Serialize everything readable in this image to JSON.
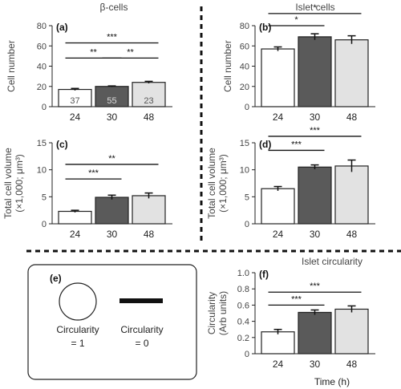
{
  "sections": {
    "beta_cells": "β-cells",
    "islet_cells": "Islet cells",
    "islet_circularity": "Islet circularity"
  },
  "x_axis_label": "Time (h)",
  "legend_box": {
    "letter": "(e)",
    "circle_label_line1": "Circularity",
    "circle_label_line2": "= 1",
    "line_label_line1": "Circularity",
    "line_label_line2": "= 0"
  },
  "colors": {
    "bar_24": "#ffffff",
    "bar_30": "#5a5a5a",
    "bar_48": "#e2e2e2",
    "stroke": "#222222",
    "bar_label_dark": "#555555",
    "bar_label_light": "#dddddd"
  },
  "chart_data": [
    {
      "panel": "(a)",
      "type": "bar",
      "categories": [
        "24",
        "30",
        "48"
      ],
      "values": [
        17,
        20,
        24
      ],
      "errors": [
        1,
        0.5,
        1
      ],
      "bar_labels": [
        "37",
        "55",
        "23"
      ],
      "ylabel": "Cell number",
      "ylim": [
        0,
        80
      ],
      "yticks": [
        0,
        20,
        40,
        60,
        80
      ],
      "significance": [
        {
          "from": 0,
          "to": 2,
          "y": 63,
          "label": "***"
        },
        {
          "from": 0,
          "to": 1,
          "y": 48,
          "label": "**"
        },
        {
          "from": 1,
          "to": 2,
          "y": 48,
          "label": "**"
        }
      ]
    },
    {
      "panel": "(b)",
      "type": "bar",
      "categories": [
        "24",
        "30",
        "48"
      ],
      "values": [
        57,
        69,
        66
      ],
      "errors": [
        2,
        3,
        4
      ],
      "ylabel": "Cell number",
      "ylim": [
        0,
        80
      ],
      "yticks": [
        0,
        20,
        40,
        60,
        80
      ],
      "significance": [
        {
          "from": 0,
          "to": 2,
          "y": 92,
          "label": "*"
        },
        {
          "from": 0,
          "to": 1,
          "y": 80,
          "label": "*"
        }
      ]
    },
    {
      "panel": "(c)",
      "type": "bar",
      "categories": [
        "24",
        "30",
        "48"
      ],
      "values": [
        2.3,
        4.9,
        5.2
      ],
      "errors": [
        0.2,
        0.4,
        0.5
      ],
      "ylabel_line1": "Total cell volume",
      "ylabel_line2": "(×1,000; μm³)",
      "ylim": [
        0,
        15
      ],
      "yticks": [
        0,
        5,
        10,
        15
      ],
      "significance": [
        {
          "from": 0,
          "to": 2,
          "y": 11,
          "label": "**"
        },
        {
          "from": 0,
          "to": 1,
          "y": 8.3,
          "label": "***"
        }
      ]
    },
    {
      "panel": "(d)",
      "type": "bar",
      "categories": [
        "24",
        "30",
        "48"
      ],
      "values": [
        6.5,
        10.5,
        10.7
      ],
      "errors": [
        0.4,
        0.4,
        1.1
      ],
      "ylabel_line1": "Total cell volume",
      "ylabel_line2": "(×1,000; μm³)",
      "ylim": [
        0,
        15
      ],
      "yticks": [
        0,
        5,
        10,
        15
      ],
      "significance": [
        {
          "from": 0,
          "to": 2,
          "y": 16.2,
          "label": "***"
        },
        {
          "from": 0,
          "to": 1,
          "y": 13.6,
          "label": "***"
        }
      ]
    },
    {
      "panel": "(f)",
      "type": "bar",
      "categories": [
        "24",
        "30",
        "48"
      ],
      "values": [
        0.27,
        0.51,
        0.55
      ],
      "errors": [
        0.03,
        0.03,
        0.04
      ],
      "ylabel_line1": "Circularity",
      "ylabel_line2": "(Arb units)",
      "ylim": [
        0,
        1.0
      ],
      "yticks": [
        0,
        0.2,
        0.4,
        0.6,
        0.8,
        1.0
      ],
      "ytick_labels": [
        "0",
        "0.2",
        "0.4",
        "0.6",
        "0.8",
        "1.0"
      ],
      "significance": [
        {
          "from": 0,
          "to": 2,
          "y": 0.76,
          "label": "***"
        },
        {
          "from": 0,
          "to": 1,
          "y": 0.6,
          "label": "***"
        }
      ]
    }
  ]
}
